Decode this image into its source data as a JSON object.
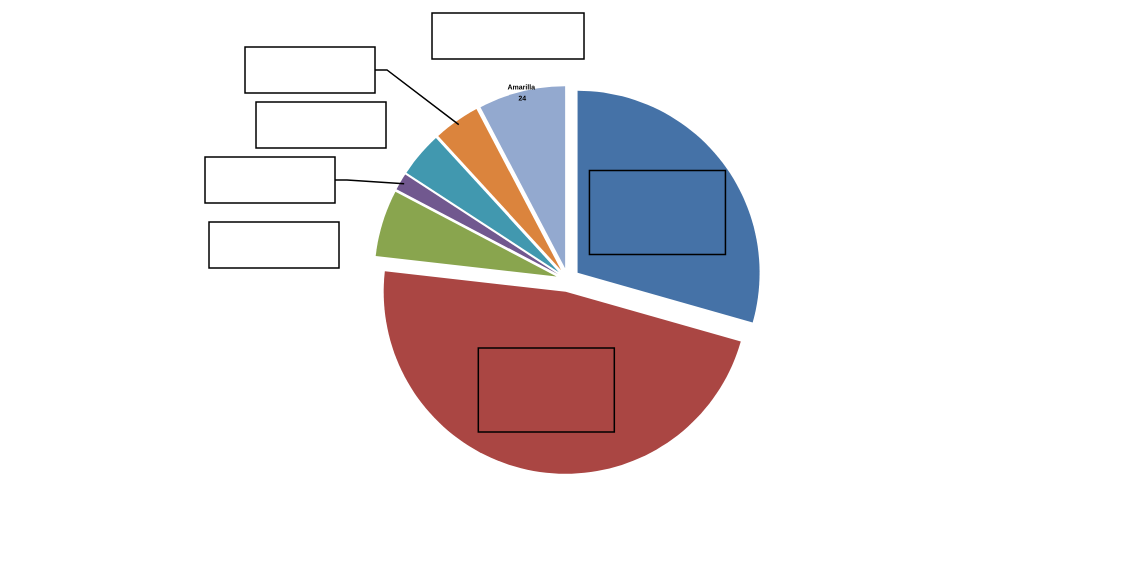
{
  "chart_data": {
    "type": "pie",
    "categories": [
      null,
      null,
      null,
      null,
      null,
      null,
      "Amarilla"
    ],
    "values": [
      29.4,
      47.4,
      5.9,
      1.5,
      4.0,
      4.1,
      7.7
    ],
    "colors": [
      "#4572a7",
      "#aa4643",
      "#89a54e",
      "#71588f",
      "#4198af",
      "#db843d",
      "#93a9cf"
    ],
    "annotations": [
      "24"
    ]
  }
}
